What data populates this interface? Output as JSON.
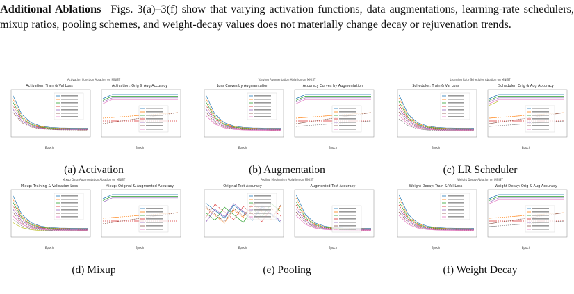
{
  "paragraph": {
    "heading": "Additional Ablations",
    "text": "Figs. 3(a)–3(f) show that varying activation functions, data augmentations, learning-rate schedulers, mixup ratios, pooling schemes, and weight-decay values does not materially change decay or rejuvenation trends."
  },
  "figures": [
    {
      "caption": "(a)  Activation",
      "supertitle": "Activation Function Ablation on MNIST",
      "left_title": "Activation: Train & Val Loss",
      "right_title": "Activation: Orig & Aug Accuracy"
    },
    {
      "caption": "(b)  Augmentation",
      "supertitle": "Varying Augmentation Ablation on MNIST",
      "left_title": "Loss Curves by Augmentation",
      "right_title": "Accuracy Curves by Augmentation"
    },
    {
      "caption": "(c)  LR Scheduler",
      "supertitle": "Learning Rate Scheduler Ablation on MNIST",
      "left_title": "Scheduler: Train & Val Loss",
      "right_title": "Scheduler: Orig & Aug Accuracy"
    },
    {
      "caption": "(d)  Mixup",
      "supertitle": "Mixup Data Augmentation Ablation on MNIST",
      "left_title": "Mixup: Training & Validation Loss",
      "right_title": "Mixup: Original & Augmented Accuracy"
    },
    {
      "caption": "(e)  Pooling",
      "supertitle": "Pooling Mechanism Ablation on MNIST",
      "left_title": "Original Test Accuracy",
      "right_title": "Augmented Test Accuracy"
    },
    {
      "caption": "(f)  Weight Decay",
      "supertitle": "Weight Decay Ablation on MNIST",
      "left_title": "Weight Decay: Train & Val Loss",
      "right_title": "Weight Decay: Orig & Aug Accuracy"
    }
  ],
  "axis_label": "Epoch"
}
